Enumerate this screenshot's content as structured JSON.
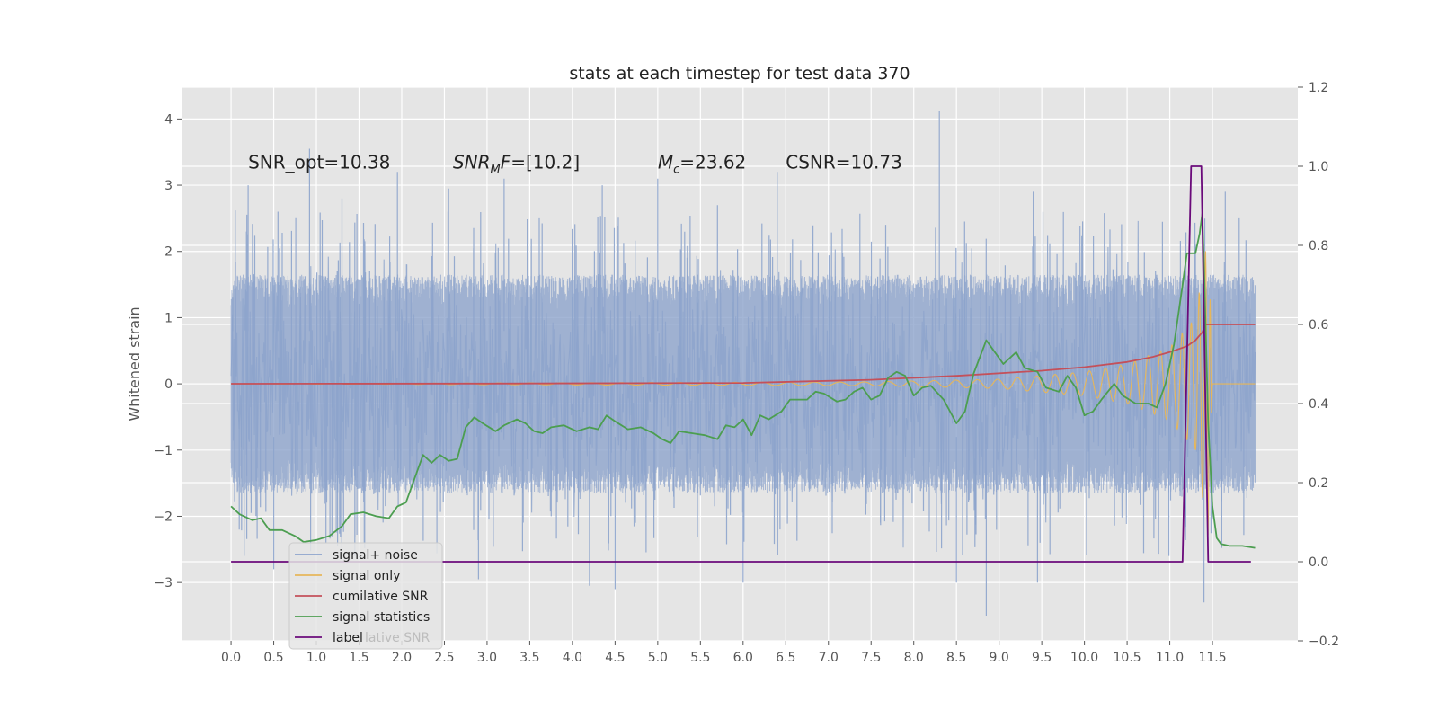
{
  "chart_data": {
    "type": "line",
    "title": "stats at each timestep for test data 370",
    "ylabel": "Whitened strain",
    "xlabel": "",
    "xlim": [
      -0.58,
      12.5
    ],
    "ylim": [
      -3.88,
      4.48
    ],
    "y2lim": [
      -0.2,
      1.2
    ],
    "x_ticks": [
      0.0,
      0.5,
      1.0,
      1.5,
      2.0,
      2.5,
      3.0,
      3.5,
      4.0,
      4.5,
      5.0,
      5.5,
      6.0,
      6.5,
      7.0,
      7.5,
      8.0,
      8.5,
      9.0,
      9.5,
      10.0,
      10.5,
      11.0,
      11.5
    ],
    "x_tick_labels": [
      "0.0",
      "0.5",
      "1.0",
      "1.5",
      "2.0",
      "2.5",
      "3.0",
      "3.5",
      "4.0",
      "4.5",
      "5.0",
      "5.5",
      "6.0",
      "6.5",
      "7.0",
      "7.5",
      "8.0",
      "8.5",
      "9.0",
      "9.5",
      "10.0",
      "10.5",
      "11.0",
      "11.5"
    ],
    "y_ticks": [
      4,
      3,
      2,
      1,
      0,
      -1,
      -2,
      -3
    ],
    "y_tick_labels": [
      "4",
      "3",
      "2",
      "1",
      "0",
      "−1",
      "−2",
      "−3"
    ],
    "y2_ticks": [
      1.2,
      1.0,
      0.8,
      0.6,
      0.4,
      0.2,
      0.0,
      -0.2
    ],
    "y2_tick_labels": [
      "1.2",
      "1.0",
      "0.8",
      "0.6",
      "0.4",
      "0.2",
      "0.0",
      "−0.2"
    ],
    "grid": true,
    "legend_position": "lower-left",
    "annotations": [
      {
        "id": "snr-opt",
        "x": 0.2,
        "y": 3.35,
        "text": "SNR_opt=10.38"
      },
      {
        "id": "snr-mf",
        "x": 2.6,
        "y": 3.35,
        "text": "SNR_MF=[10.2]",
        "main": "SNR",
        "sub": "M",
        "rest": "F=[10.2]"
      },
      {
        "id": "mc",
        "x": 5.0,
        "y": 3.35,
        "text": "M_c=23.62",
        "main": "M",
        "sub": "c",
        "rest": "=23.62"
      },
      {
        "id": "csnr",
        "x": 6.5,
        "y": 3.35,
        "text": "CSNR=10.73"
      }
    ],
    "series": [
      {
        "name": "signal+ noise",
        "color": "#8da4cc",
        "axis": "left",
        "x_range": [
          0.0,
          12.0
        ],
        "description_envelope_upper": 1.5,
        "description_envelope_lower": -1.5,
        "peaks": [
          {
            "x": 0.02,
            "y": 1.3
          },
          {
            "x": 0.05,
            "y": 2.62
          },
          {
            "x": 0.18,
            "y": 2.3
          },
          {
            "x": 0.2,
            "y": 3.0
          },
          {
            "x": 0.55,
            "y": 2.6
          },
          {
            "x": 0.92,
            "y": 3.55
          },
          {
            "x": 1.3,
            "y": 2.8
          },
          {
            "x": 1.95,
            "y": 3.2
          },
          {
            "x": 2.55,
            "y": 2.95
          },
          {
            "x": 3.2,
            "y": 3.1
          },
          {
            "x": 4.35,
            "y": 3.0
          },
          {
            "x": 5.0,
            "y": 3.1
          },
          {
            "x": 5.7,
            "y": 2.7
          },
          {
            "x": 6.4,
            "y": 3.2
          },
          {
            "x": 8.3,
            "y": 4.12
          },
          {
            "x": 9.4,
            "y": 2.9
          },
          {
            "x": 11.3,
            "y": 2.1
          },
          {
            "x": 11.65,
            "y": 2.9
          }
        ],
        "troughs": [
          {
            "x": 0.5,
            "y": -2.8
          },
          {
            "x": 1.45,
            "y": -2.6
          },
          {
            "x": 2.9,
            "y": -2.95
          },
          {
            "x": 4.2,
            "y": -3.05
          },
          {
            "x": 4.5,
            "y": -3.1
          },
          {
            "x": 6.0,
            "y": -3.0
          },
          {
            "x": 8.5,
            "y": -3.0
          },
          {
            "x": 8.85,
            "y": -3.5
          },
          {
            "x": 9.45,
            "y": -3.0
          },
          {
            "x": 11.4,
            "y": -3.3
          }
        ]
      },
      {
        "name": "signal only",
        "color": "#e6b65a",
        "axis": "left",
        "x_range": [
          0.0,
          12.0
        ],
        "amplitude_points": [
          [
            0.0,
            0.0
          ],
          [
            7.5,
            0.03
          ],
          [
            9.0,
            0.07
          ],
          [
            10.0,
            0.18
          ],
          [
            10.5,
            0.3
          ],
          [
            11.0,
            0.55
          ],
          [
            11.3,
            1.0
          ],
          [
            11.45,
            2.3
          ],
          [
            11.5,
            0.0
          ],
          [
            12.0,
            0.0
          ]
        ]
      },
      {
        "name": "cumilative SNR",
        "color": "#c4505a",
        "axis": "right",
        "points": [
          [
            0.0,
            0.45
          ],
          [
            3.0,
            0.4505
          ],
          [
            6.0,
            0.452
          ],
          [
            7.5,
            0.46
          ],
          [
            8.5,
            0.47
          ],
          [
            9.5,
            0.483
          ],
          [
            10.0,
            0.492
          ],
          [
            10.5,
            0.505
          ],
          [
            10.8,
            0.518
          ],
          [
            11.0,
            0.53
          ],
          [
            11.2,
            0.545
          ],
          [
            11.3,
            0.56
          ],
          [
            11.38,
            0.58
          ],
          [
            11.42,
            0.6
          ],
          [
            11.45,
            0.6
          ],
          [
            12.0,
            0.6
          ]
        ]
      },
      {
        "name": "signal statistics",
        "color": "#4c9e50",
        "axis": "right",
        "points": [
          [
            0.0,
            0.14
          ],
          [
            0.1,
            0.12
          ],
          [
            0.25,
            0.105
          ],
          [
            0.35,
            0.11
          ],
          [
            0.45,
            0.08
          ],
          [
            0.6,
            0.08
          ],
          [
            0.75,
            0.065
          ],
          [
            0.85,
            0.05
          ],
          [
            1.0,
            0.055
          ],
          [
            1.15,
            0.065
          ],
          [
            1.3,
            0.09
          ],
          [
            1.4,
            0.12
          ],
          [
            1.55,
            0.125
          ],
          [
            1.7,
            0.115
          ],
          [
            1.85,
            0.11
          ],
          [
            1.95,
            0.14
          ],
          [
            2.05,
            0.15
          ],
          [
            2.15,
            0.21
          ],
          [
            2.25,
            0.27
          ],
          [
            2.35,
            0.25
          ],
          [
            2.45,
            0.27
          ],
          [
            2.55,
            0.255
          ],
          [
            2.65,
            0.26
          ],
          [
            2.75,
            0.34
          ],
          [
            2.85,
            0.365
          ],
          [
            2.95,
            0.35
          ],
          [
            3.1,
            0.33
          ],
          [
            3.2,
            0.345
          ],
          [
            3.35,
            0.36
          ],
          [
            3.45,
            0.35
          ],
          [
            3.55,
            0.33
          ],
          [
            3.65,
            0.325
          ],
          [
            3.75,
            0.34
          ],
          [
            3.9,
            0.345
          ],
          [
            4.05,
            0.33
          ],
          [
            4.2,
            0.34
          ],
          [
            4.3,
            0.335
          ],
          [
            4.4,
            0.37
          ],
          [
            4.5,
            0.355
          ],
          [
            4.65,
            0.335
          ],
          [
            4.8,
            0.34
          ],
          [
            4.95,
            0.325
          ],
          [
            5.05,
            0.31
          ],
          [
            5.15,
            0.3
          ],
          [
            5.25,
            0.33
          ],
          [
            5.4,
            0.325
          ],
          [
            5.55,
            0.32
          ],
          [
            5.7,
            0.31
          ],
          [
            5.8,
            0.345
          ],
          [
            5.9,
            0.34
          ],
          [
            6.0,
            0.36
          ],
          [
            6.1,
            0.32
          ],
          [
            6.2,
            0.37
          ],
          [
            6.3,
            0.36
          ],
          [
            6.45,
            0.38
          ],
          [
            6.55,
            0.41
          ],
          [
            6.75,
            0.41
          ],
          [
            6.85,
            0.43
          ],
          [
            6.95,
            0.425
          ],
          [
            7.1,
            0.405
          ],
          [
            7.2,
            0.41
          ],
          [
            7.3,
            0.43
          ],
          [
            7.4,
            0.44
          ],
          [
            7.5,
            0.41
          ],
          [
            7.6,
            0.42
          ],
          [
            7.7,
            0.465
          ],
          [
            7.8,
            0.48
          ],
          [
            7.9,
            0.47
          ],
          [
            8.0,
            0.42
          ],
          [
            8.1,
            0.44
          ],
          [
            8.2,
            0.445
          ],
          [
            8.35,
            0.41
          ],
          [
            8.5,
            0.35
          ],
          [
            8.6,
            0.38
          ],
          [
            8.7,
            0.475
          ],
          [
            8.85,
            0.56
          ],
          [
            8.95,
            0.53
          ],
          [
            9.05,
            0.5
          ],
          [
            9.2,
            0.53
          ],
          [
            9.3,
            0.49
          ],
          [
            9.45,
            0.48
          ],
          [
            9.55,
            0.44
          ],
          [
            9.7,
            0.43
          ],
          [
            9.8,
            0.47
          ],
          [
            9.9,
            0.44
          ],
          [
            10.0,
            0.37
          ],
          [
            10.1,
            0.38
          ],
          [
            10.2,
            0.41
          ],
          [
            10.35,
            0.45
          ],
          [
            10.45,
            0.42
          ],
          [
            10.6,
            0.4
          ],
          [
            10.75,
            0.4
          ],
          [
            10.85,
            0.39
          ],
          [
            10.95,
            0.45
          ],
          [
            11.05,
            0.55
          ],
          [
            11.15,
            0.7
          ],
          [
            11.2,
            0.78
          ],
          [
            11.3,
            0.78
          ],
          [
            11.35,
            0.83
          ],
          [
            11.38,
            0.88
          ],
          [
            11.4,
            0.75
          ],
          [
            11.45,
            0.35
          ],
          [
            11.5,
            0.14
          ],
          [
            11.55,
            0.06
          ],
          [
            11.6,
            0.045
          ],
          [
            11.7,
            0.04
          ],
          [
            11.85,
            0.04
          ],
          [
            12.0,
            0.035
          ]
        ]
      },
      {
        "name": "label",
        "color": "#6a0a7a",
        "axis": "right",
        "points": [
          [
            0.0,
            0.0
          ],
          [
            11.15,
            0.0
          ],
          [
            11.25,
            1.0
          ],
          [
            11.37,
            1.0
          ],
          [
            11.45,
            0.0
          ],
          [
            11.95,
            0.0
          ]
        ]
      }
    ],
    "legend": {
      "entries": [
        {
          "label": "signal+ noise",
          "color": "#8da4cc"
        },
        {
          "label": "signal only",
          "color": "#e6b65a"
        },
        {
          "label": "cumilative SNR",
          "color": "#c4505a"
        },
        {
          "label": "signal statistics",
          "color": "#4c9e50"
        },
        {
          "label": "label",
          "color": "#6a0a7a"
        }
      ],
      "ghost_text": "lative SNR"
    }
  }
}
